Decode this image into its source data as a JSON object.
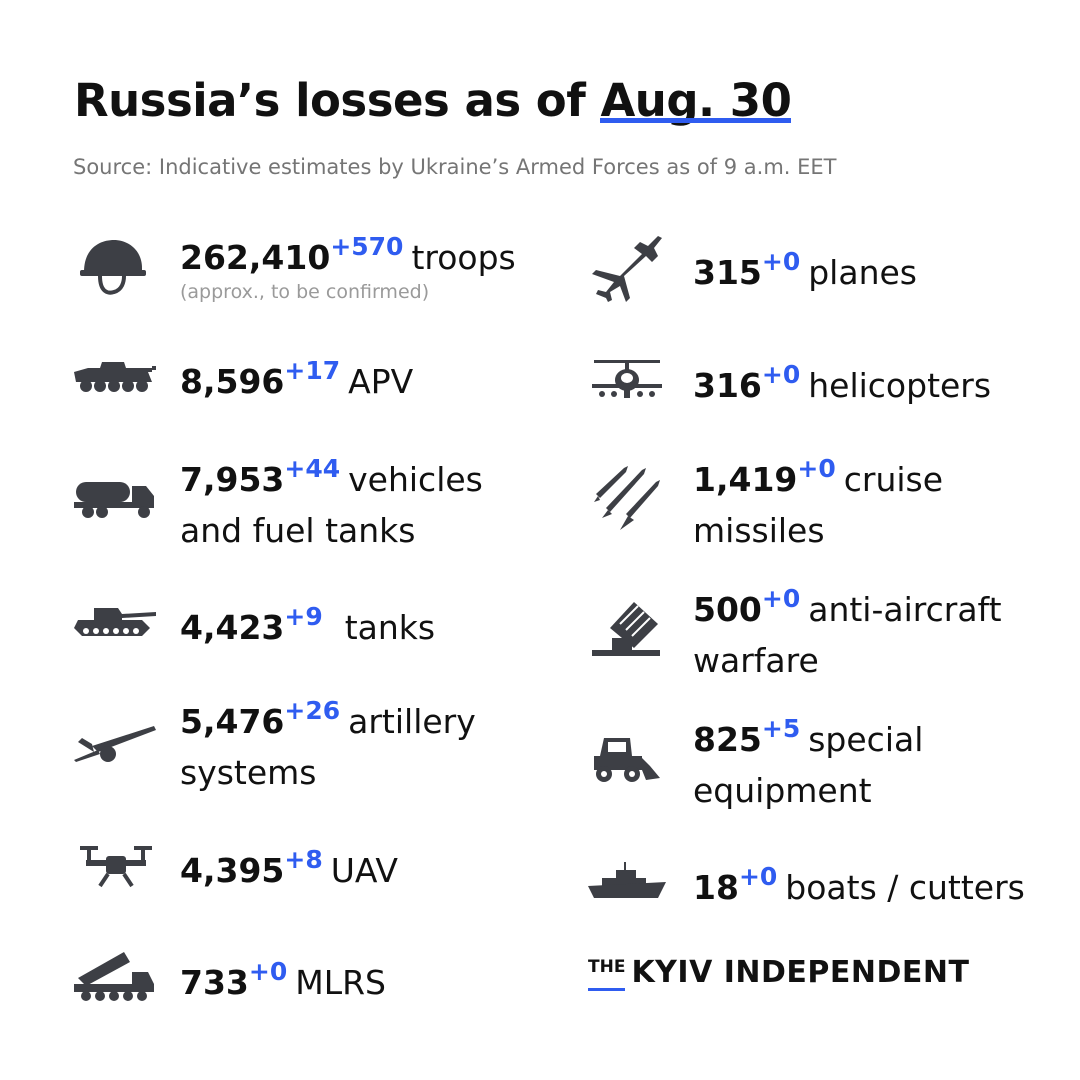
{
  "header": {
    "title_main": "Russia’s losses as of",
    "title_date": "Aug. 30",
    "source": "Source: Indicative estimates by Ukraine’s Armed Forces as of 9 a.m. EET"
  },
  "left_items": [
    {
      "icon": "helmet-icon",
      "value": "262,410",
      "delta": "+570",
      "label": "troops",
      "label2": "",
      "note": "(approx., to be confirmed)"
    },
    {
      "icon": "apv-icon",
      "value": "8,596",
      "delta": "+17",
      "label": "APV",
      "label2": "",
      "note": ""
    },
    {
      "icon": "fuel-truck-icon",
      "value": "7,953",
      "delta": "+44",
      "label": "vehicles",
      "label2": "and fuel tanks",
      "note": ""
    },
    {
      "icon": "tank-icon",
      "value": "4,423",
      "delta": "+9",
      "label": "tanks",
      "label2": "",
      "note": ""
    },
    {
      "icon": "artillery-icon",
      "value": "5,476",
      "delta": "+26",
      "label": "artillery",
      "label2": "systems",
      "note": ""
    },
    {
      "icon": "drone-icon",
      "value": "4,395",
      "delta": "+8",
      "label": "UAV",
      "label2": "",
      "note": ""
    },
    {
      "icon": "mlrs-icon",
      "value": "733",
      "delta": "+0",
      "label": "MLRS",
      "label2": "",
      "note": ""
    }
  ],
  "right_items": [
    {
      "icon": "plane-icon",
      "value": "315",
      "delta": "+0",
      "label": "planes",
      "label2": "",
      "note": ""
    },
    {
      "icon": "helicopter-icon",
      "value": "316",
      "delta": "+0",
      "label": "helicopters",
      "label2": "",
      "note": ""
    },
    {
      "icon": "missile-icon",
      "value": "1,419",
      "delta": "+0",
      "label": "cruise",
      "label2": "missiles",
      "note": ""
    },
    {
      "icon": "anti-aircraft-icon",
      "value": "500",
      "delta": "+0",
      "label": "anti-aircraft",
      "label2": "warfare",
      "note": ""
    },
    {
      "icon": "bulldozer-icon",
      "value": "825",
      "delta": "+5",
      "label": "special",
      "label2": "equipment",
      "note": ""
    },
    {
      "icon": "ship-icon",
      "value": "18",
      "delta": "+0",
      "label": "boats / cutters",
      "label2": "",
      "note": ""
    }
  ],
  "brand": {
    "the": "THE",
    "name": "KYIV INDEPENDENT"
  },
  "colors": {
    "accent": "#2f5cf0",
    "icon": "#3d3f45",
    "text": "#111111",
    "muted": "#757575"
  }
}
